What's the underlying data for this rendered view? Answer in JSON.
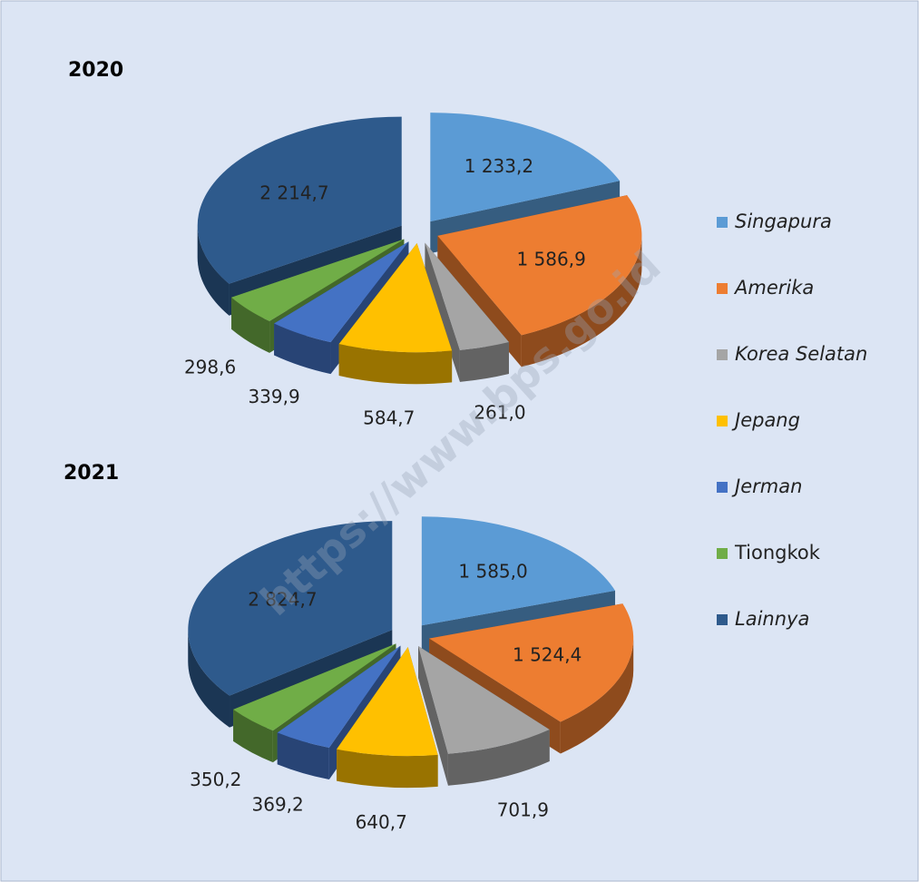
{
  "chart_data": [
    {
      "type": "pie",
      "title": "2020",
      "categories": [
        "Singapura",
        "Amerika",
        "Korea Selatan",
        "Jepang",
        "Jerman",
        "Tiongkok",
        "Lainnya"
      ],
      "values": [
        1233.2,
        1586.9,
        261.0,
        584.7,
        339.9,
        298.6,
        2214.7
      ],
      "value_labels": [
        "1 233,2",
        "1 586,9",
        "261,0",
        "584,7",
        "339,9",
        "298,6",
        "2 214,7"
      ],
      "colors": [
        "#5b9bd5",
        "#ed7d31",
        "#a5a5a5",
        "#ffc000",
        "#4472c4",
        "#70ad47",
        "#2e5a8c"
      ]
    },
    {
      "type": "pie",
      "title": "2021",
      "categories": [
        "Singapura",
        "Amerika",
        "Korea Selatan",
        "Jepang",
        "Jerman",
        "Tiongkok",
        "Lainnya"
      ],
      "values": [
        1585.0,
        1524.4,
        701.9,
        640.7,
        369.2,
        350.2,
        2824.7
      ],
      "value_labels": [
        "1 585,0",
        "1 524,4",
        "701,9",
        "640,7",
        "369,2",
        "350,2",
        "2 824,7"
      ],
      "colors": [
        "#5b9bd5",
        "#ed7d31",
        "#a5a5a5",
        "#ffc000",
        "#4472c4",
        "#70ad47",
        "#2e5a8c"
      ]
    }
  ],
  "watermark": "https://www.bps.go.id"
}
